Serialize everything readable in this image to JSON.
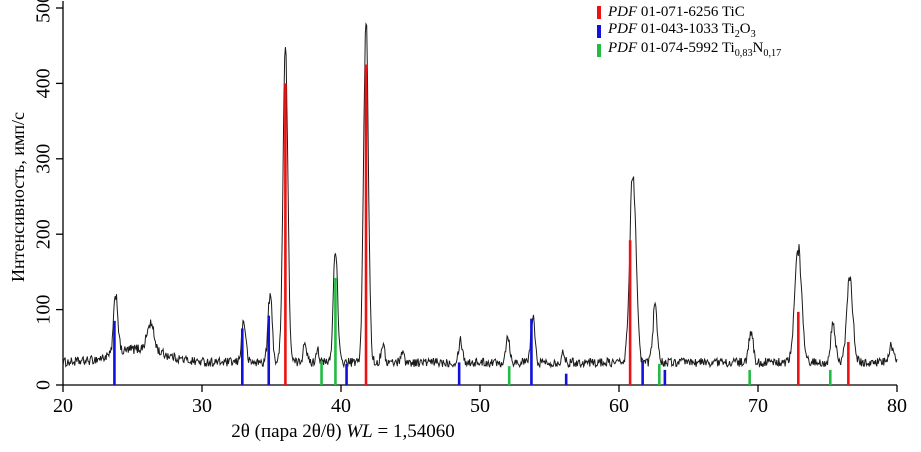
{
  "figure": {
    "background": "#ffffff",
    "axis_color": "#000000"
  },
  "chart_data": {
    "type": "line",
    "title": "",
    "xlabel": "2θ (пара 2θ/θ) WL = 1,54060",
    "xlabel_parts": {
      "pre": "2θ (пара 2θ/θ) ",
      "wl": "WL",
      "post": " = 1,54060"
    },
    "ylabel": "Интенсивность, имп/с",
    "xlim": [
      20,
      80
    ],
    "ylim": [
      0,
      500
    ],
    "x_ticks": [
      20,
      30,
      40,
      50,
      60,
      70,
      80
    ],
    "y_ticks": [
      0,
      100,
      200,
      300,
      400,
      500
    ],
    "grid": false,
    "legend_position": "top-right-inside",
    "pattern": {
      "name": "measured-xrd-pattern",
      "color": "#1a1a1a",
      "baseline": 30,
      "noise_amplitude": 6,
      "broad_humps": [
        [
          25.5,
          18,
          1.8
        ]
      ],
      "peaks": [
        [
          23.8,
          80,
          0.15
        ],
        [
          26.3,
          35,
          0.25
        ],
        [
          33.0,
          55,
          0.15
        ],
        [
          34.9,
          90,
          0.15
        ],
        [
          36.0,
          420,
          0.17
        ],
        [
          37.4,
          30,
          0.12
        ],
        [
          38.3,
          20,
          0.1
        ],
        [
          39.6,
          155,
          0.15
        ],
        [
          41.8,
          450,
          0.17
        ],
        [
          43.0,
          25,
          0.12
        ],
        [
          44.4,
          15,
          0.12
        ],
        [
          48.6,
          30,
          0.14
        ],
        [
          52.0,
          35,
          0.14
        ],
        [
          53.8,
          60,
          0.14
        ],
        [
          56.0,
          12,
          0.12
        ],
        [
          61.0,
          255,
          0.22
        ],
        [
          62.6,
          75,
          0.16
        ],
        [
          69.5,
          42,
          0.15
        ],
        [
          72.9,
          150,
          0.25
        ],
        [
          75.4,
          55,
          0.16
        ],
        [
          76.6,
          110,
          0.22
        ],
        [
          79.6,
          22,
          0.15
        ]
      ]
    },
    "reference_series": [
      {
        "id": "tic",
        "code": "PDF",
        "label": " 01-071-6256 TiC",
        "color": "#ee1111",
        "peaks": [
          [
            36.0,
            400
          ],
          [
            41.8,
            425
          ],
          [
            60.8,
            192
          ],
          [
            72.9,
            97
          ],
          [
            76.5,
            57
          ]
        ]
      },
      {
        "id": "ti2o3",
        "code": "PDF",
        "label": " 01-043-1033 Ti_{2}O_{3}",
        "color": "#1111dd",
        "peaks": [
          [
            23.7,
            85
          ],
          [
            32.9,
            75
          ],
          [
            34.8,
            92
          ],
          [
            40.4,
            28
          ],
          [
            48.5,
            30
          ],
          [
            53.7,
            88
          ],
          [
            56.2,
            15
          ],
          [
            61.7,
            32
          ],
          [
            63.3,
            20
          ]
        ]
      },
      {
        "id": "ti083n017",
        "code": "PDF",
        "label": " 01-074-5992 Ti_{0,83}N_{0,17}",
        "color": "#22bb44",
        "peaks": [
          [
            38.6,
            32
          ],
          [
            39.6,
            142
          ],
          [
            52.1,
            25
          ],
          [
            62.9,
            28
          ],
          [
            69.4,
            20
          ],
          [
            75.2,
            20
          ]
        ]
      }
    ]
  }
}
